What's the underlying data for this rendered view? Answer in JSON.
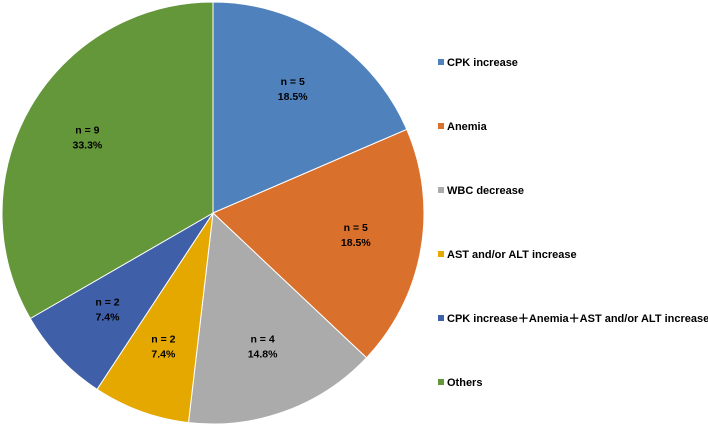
{
  "chart_data": {
    "type": "pie",
    "title": "",
    "start_angle_deg": 0,
    "direction": "clockwise",
    "legend_position": "right",
    "slices": [
      {
        "label": "CPK increase",
        "n_label": "n = 5",
        "pct_label": "18.5%",
        "value": 5,
        "color": "#4F81BD"
      },
      {
        "label": "Anemia",
        "n_label": "n = 5",
        "pct_label": "18.5%",
        "value": 5,
        "color": "#D9702C"
      },
      {
        "label": "WBC decrease",
        "n_label": "n = 4",
        "pct_label": "14.8%",
        "value": 4,
        "color": "#ABABAB"
      },
      {
        "label": "AST and/or ALT increase",
        "n_label": "n = 2",
        "pct_label": "7.4%",
        "value": 2,
        "color": "#E5A800"
      },
      {
        "label": "CPK increase＋Anemia＋AST and/or ALT increase",
        "n_label": "n = 2",
        "pct_label": "7.4%",
        "value": 2,
        "color": "#3F5FA8"
      },
      {
        "label": "Others",
        "n_label": "n = 9",
        "pct_label": "33.3%",
        "value": 9,
        "color": "#64963A"
      }
    ]
  }
}
